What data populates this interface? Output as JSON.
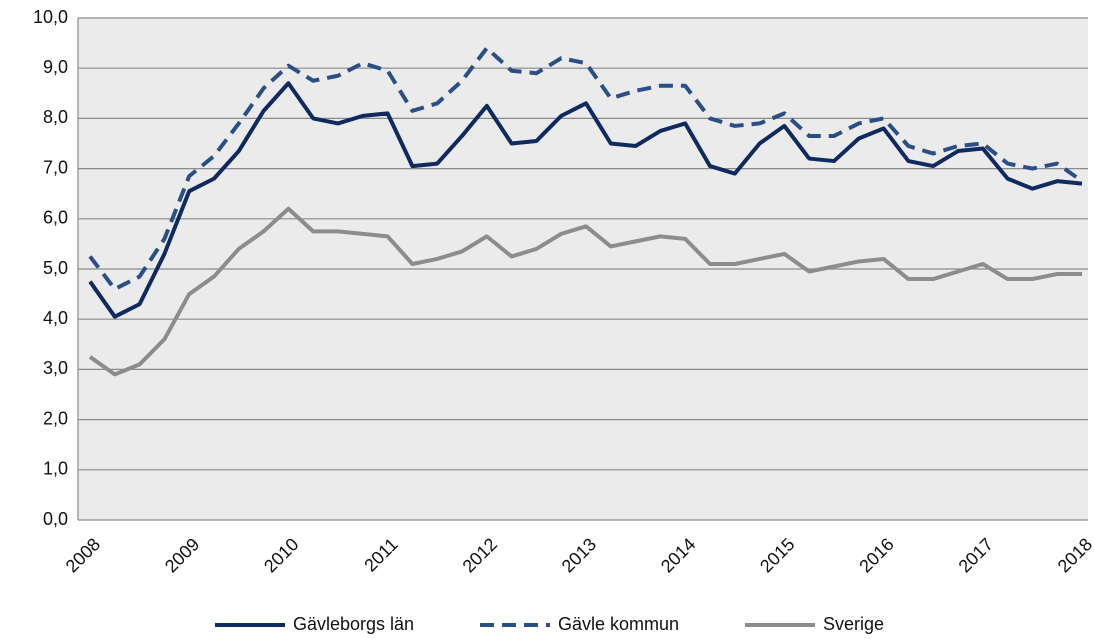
{
  "chart_data": {
    "type": "line",
    "categories": [
      "2008",
      null,
      null,
      null,
      "2009",
      null,
      null,
      null,
      "2010",
      null,
      null,
      null,
      "2011",
      null,
      null,
      null,
      "2012",
      null,
      null,
      null,
      "2013",
      null,
      null,
      null,
      "2014",
      null,
      null,
      null,
      "2015",
      null,
      null,
      null,
      "2016",
      null,
      null,
      null,
      "2017",
      null,
      null,
      null,
      "2018"
    ],
    "series": [
      {
        "name": "Gävleborgs län",
        "color": "#0f2a5e",
        "dashed": false,
        "values": [
          4.75,
          4.05,
          4.3,
          5.3,
          6.55,
          6.8,
          7.35,
          8.15,
          8.7,
          8.0,
          7.9,
          8.05,
          8.1,
          7.05,
          7.1,
          7.65,
          8.25,
          7.5,
          7.55,
          8.05,
          8.3,
          7.5,
          7.45,
          7.75,
          7.9,
          7.05,
          6.9,
          7.5,
          7.85,
          7.2,
          7.15,
          7.6,
          7.8,
          7.15,
          7.05,
          7.35,
          7.4,
          6.8,
          6.6,
          6.75,
          6.7
        ]
      },
      {
        "name": "Gävle kommun",
        "color": "#2a4f85",
        "dashed": true,
        "values": [
          5.25,
          4.6,
          4.85,
          5.6,
          6.85,
          7.25,
          7.9,
          8.6,
          9.05,
          8.75,
          8.85,
          9.1,
          8.95,
          8.15,
          8.3,
          8.75,
          9.4,
          8.95,
          8.9,
          9.2,
          9.1,
          8.4,
          8.55,
          8.65,
          8.65,
          8.0,
          7.85,
          7.9,
          8.1,
          7.65,
          7.65,
          7.9,
          8.0,
          7.45,
          7.3,
          7.45,
          7.5,
          7.1,
          7.0,
          7.1,
          6.75
        ]
      },
      {
        "name": "Sverige",
        "color": "#8c8c8c",
        "dashed": false,
        "values": [
          3.25,
          2.9,
          3.1,
          3.6,
          4.5,
          4.85,
          5.4,
          5.75,
          6.2,
          5.75,
          5.75,
          5.7,
          5.65,
          5.1,
          5.2,
          5.35,
          5.65,
          5.25,
          5.4,
          5.7,
          5.85,
          5.45,
          5.55,
          5.65,
          5.6,
          5.1,
          5.1,
          5.2,
          5.3,
          4.95,
          5.05,
          5.15,
          5.2,
          4.8,
          4.8,
          4.95,
          5.1,
          4.8,
          4.8,
          4.9,
          4.9
        ]
      }
    ],
    "ylim": [
      0,
      10
    ],
    "yticks": [
      {
        "value": 0,
        "label": "0,0"
      },
      {
        "value": 1,
        "label": "1,0"
      },
      {
        "value": 2,
        "label": "2,0"
      },
      {
        "value": 3,
        "label": "3,0"
      },
      {
        "value": 4,
        "label": "4,0"
      },
      {
        "value": 5,
        "label": "5,0"
      },
      {
        "value": 6,
        "label": "6,0"
      },
      {
        "value": 7,
        "label": "7,0"
      },
      {
        "value": 8,
        "label": "8,0"
      },
      {
        "value": 9,
        "label": "9,0"
      },
      {
        "value": 10,
        "label": "10,0"
      }
    ],
    "grid": true,
    "legend": "bottom",
    "background": "#ebebeb"
  }
}
